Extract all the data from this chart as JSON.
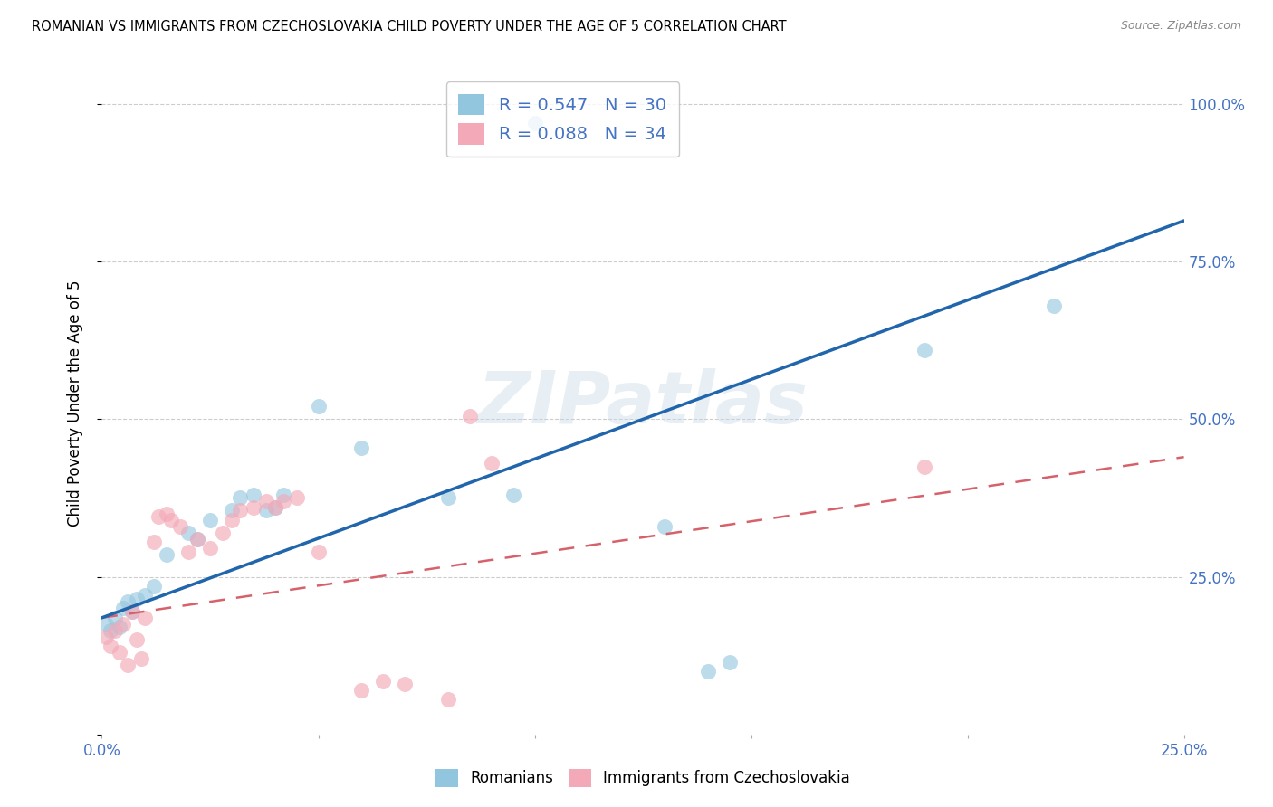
{
  "title": "ROMANIAN VS IMMIGRANTS FROM CZECHOSLOVAKIA CHILD POVERTY UNDER THE AGE OF 5 CORRELATION CHART",
  "source": "Source: ZipAtlas.com",
  "ylabel": "Child Poverty Under the Age of 5",
  "xlim": [
    0.0,
    0.25
  ],
  "ylim": [
    0.0,
    1.05
  ],
  "blue_color": "#92c5de",
  "pink_color": "#f4a9b8",
  "blue_line_color": "#2166ac",
  "pink_line_color": "#d6616b",
  "romanians_R": "0.547",
  "romanians_N": "30",
  "immigrants_R": "0.088",
  "immigrants_N": "34",
  "legend_label_romanians": "Romanians",
  "legend_label_immigrants": "Immigrants from Czechoslovakia",
  "watermark": "ZIPatlas",
  "text_blue": "#4472c4",
  "grid_color": "#cccccc",
  "rom_x": [
    0.001,
    0.002,
    0.003,
    0.004,
    0.005,
    0.006,
    0.007,
    0.008,
    0.01,
    0.012,
    0.015,
    0.02,
    0.022,
    0.025,
    0.03,
    0.032,
    0.035,
    0.038,
    0.04,
    0.042,
    0.05,
    0.06,
    0.08,
    0.095,
    0.1,
    0.13,
    0.14,
    0.145,
    0.19,
    0.22
  ],
  "rom_y": [
    0.175,
    0.165,
    0.185,
    0.17,
    0.2,
    0.21,
    0.195,
    0.215,
    0.22,
    0.235,
    0.285,
    0.32,
    0.31,
    0.34,
    0.355,
    0.375,
    0.38,
    0.355,
    0.36,
    0.38,
    0.52,
    0.455,
    0.375,
    0.38,
    0.97,
    0.33,
    0.1,
    0.115,
    0.61,
    0.68
  ],
  "imm_x": [
    0.001,
    0.002,
    0.003,
    0.004,
    0.005,
    0.006,
    0.007,
    0.008,
    0.009,
    0.01,
    0.012,
    0.013,
    0.015,
    0.016,
    0.018,
    0.02,
    0.022,
    0.025,
    0.028,
    0.03,
    0.032,
    0.035,
    0.038,
    0.04,
    0.042,
    0.045,
    0.05,
    0.06,
    0.065,
    0.07,
    0.08,
    0.085,
    0.09,
    0.19
  ],
  "imm_y": [
    0.155,
    0.14,
    0.165,
    0.13,
    0.175,
    0.11,
    0.195,
    0.15,
    0.12,
    0.185,
    0.305,
    0.345,
    0.35,
    0.34,
    0.33,
    0.29,
    0.31,
    0.295,
    0.32,
    0.34,
    0.355,
    0.36,
    0.37,
    0.36,
    0.37,
    0.375,
    0.29,
    0.07,
    0.085,
    0.08,
    0.055,
    0.505,
    0.43,
    0.425
  ]
}
